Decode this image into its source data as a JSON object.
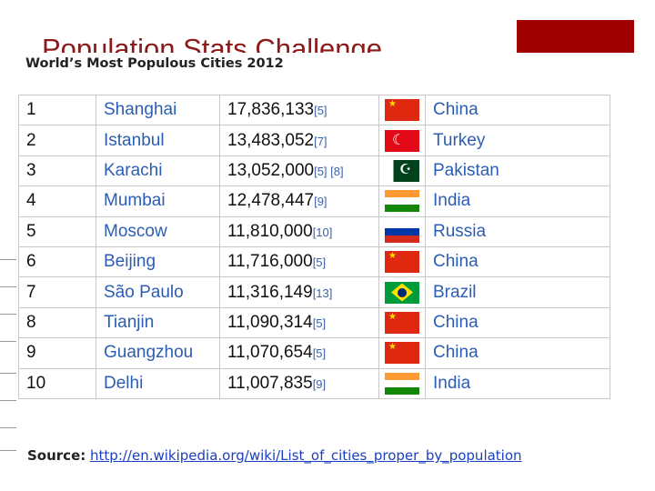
{
  "slide": {
    "title": "Population Stats Challenge"
  },
  "image": {
    "caption": "World’s Most Populous Cities 2012",
    "rows": [
      [
        "1",
        "Shanghai",
        "17,836,133",
        "[5]",
        "China"
      ],
      [
        "2",
        "Istanbul",
        "13,483,052",
        "[7]",
        "Turkey"
      ],
      [
        "3",
        "Karachi",
        "13,052,000",
        "[5] [8]",
        "Pakistan"
      ],
      [
        "4",
        "Mumbai",
        "12,478,447",
        "[9]",
        "India"
      ],
      [
        "5",
        "Moscow",
        "11,810,000",
        "[10]",
        "Russia"
      ],
      [
        "6",
        "Beijing",
        "11,716,000",
        "[5]",
        "China"
      ],
      [
        "7",
        "São Paulo",
        "11,316,149",
        "[13]",
        "Brazil"
      ],
      [
        "8",
        "Tianjin",
        "11,090,314",
        "[5]",
        "China"
      ],
      [
        "9",
        "Guangzhou",
        "11,070,654",
        "[5]",
        "China"
      ],
      [
        "10",
        "Delhi",
        "11,007,835",
        "[9]",
        "India"
      ]
    ],
    "source_label": "Source:",
    "source_url": "http://en.wikipedia.org/wiki/List_of_cities_proper_by_population"
  }
}
